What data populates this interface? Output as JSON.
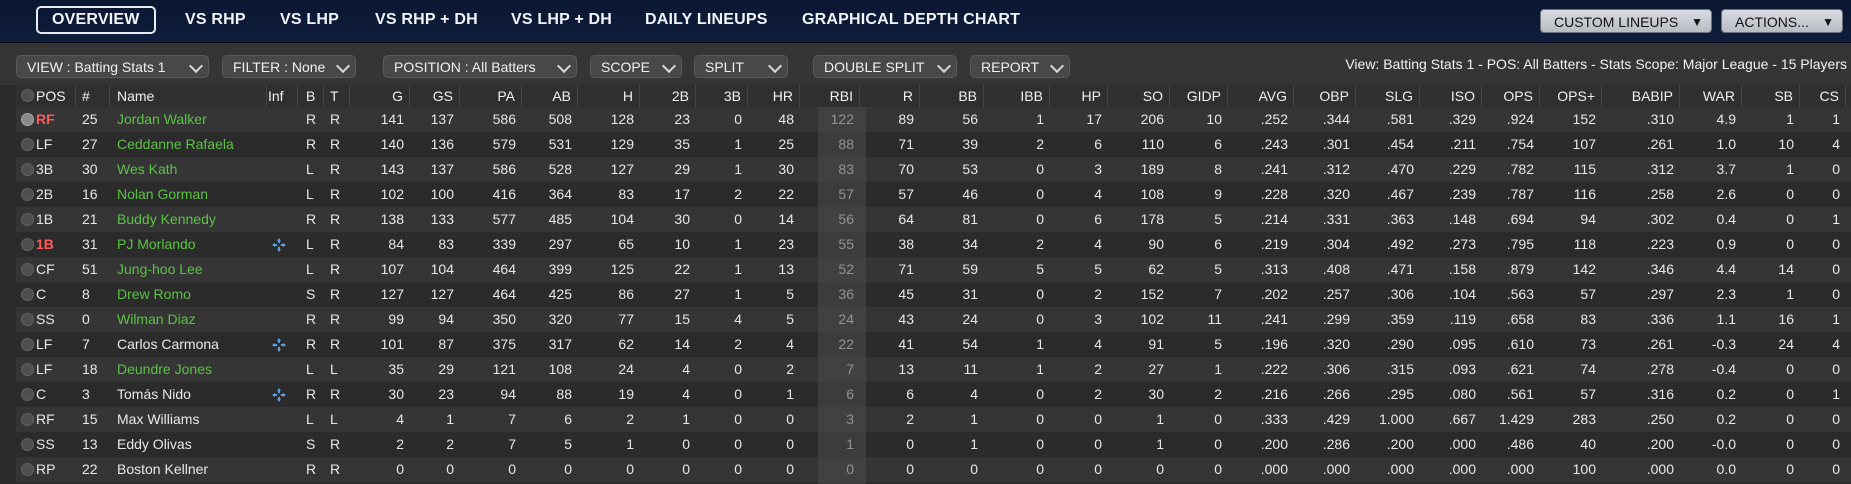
{
  "nav": {
    "tabs": [
      "OVERVIEW",
      "VS RHP",
      "VS LHP",
      "VS RHP + DH",
      "VS LHP + DH",
      "DAILY LINEUPS",
      "GRAPHICAL DEPTH CHART"
    ],
    "custom_lineups": "CUSTOM LINEUPS",
    "actions": "ACTIONS..."
  },
  "toolbar": {
    "view": "VIEW : Batting Stats 1",
    "filter": "FILTER : None",
    "position": "POSITION : All Batters",
    "scope": "SCOPE",
    "split": "SPLIT",
    "double_split": "DOUBLE SPLIT",
    "report": "REPORT",
    "info": "View: Batting Stats 1 - POS: All Batters - Stats Scope: Major League - 15 Players"
  },
  "columns": [
    "POS",
    "#",
    "Name",
    "Inf",
    "B",
    "T",
    "G",
    "GS",
    "PA",
    "AB",
    "H",
    "2B",
    "3B",
    "HR",
    "RBI",
    "R",
    "BB",
    "IBB",
    "HP",
    "SO",
    "GIDP",
    "AVG",
    "OBP",
    "SLG",
    "ISO",
    "OPS",
    "OPS+",
    "BABIP",
    "WAR",
    "SB",
    "CS"
  ],
  "colors": {
    "green": "#5cc245",
    "red": "#ff5a5a",
    "injury": "#5aa0e0"
  },
  "players": [
    {
      "pos": "RF",
      "num": "25",
      "name": "Jordan Walker",
      "inf": "",
      "b": "R",
      "t": "R",
      "stats": [
        "141",
        "137",
        "586",
        "508",
        "128",
        "23",
        "0",
        "48",
        "122",
        "89",
        "56",
        "1",
        "17",
        "206",
        "10",
        ".252",
        ".344",
        ".581",
        ".329",
        ".924",
        "152",
        ".310",
        "4.9",
        "1",
        "1"
      ],
      "name_color": "green",
      "pos_red": true,
      "selected": true
    },
    {
      "pos": "LF",
      "num": "27",
      "name": "Ceddanne Rafaela",
      "inf": "",
      "b": "R",
      "t": "R",
      "stats": [
        "140",
        "136",
        "579",
        "531",
        "129",
        "35",
        "1",
        "25",
        "88",
        "71",
        "39",
        "2",
        "6",
        "110",
        "6",
        ".243",
        ".301",
        ".454",
        ".211",
        ".754",
        "107",
        ".261",
        "1.0",
        "10",
        "4"
      ],
      "name_color": "green",
      "pos_red": false,
      "selected": false
    },
    {
      "pos": "3B",
      "num": "30",
      "name": "Wes Kath",
      "inf": "",
      "b": "L",
      "t": "R",
      "stats": [
        "143",
        "137",
        "586",
        "528",
        "127",
        "29",
        "1",
        "30",
        "83",
        "70",
        "53",
        "0",
        "3",
        "189",
        "8",
        ".241",
        ".312",
        ".470",
        ".229",
        ".782",
        "115",
        ".312",
        "3.7",
        "1",
        "0"
      ],
      "name_color": "green",
      "pos_red": false,
      "selected": false
    },
    {
      "pos": "2B",
      "num": "16",
      "name": "Nolan Gorman",
      "inf": "",
      "b": "L",
      "t": "R",
      "stats": [
        "102",
        "100",
        "416",
        "364",
        "83",
        "17",
        "2",
        "22",
        "57",
        "57",
        "46",
        "0",
        "4",
        "108",
        "9",
        ".228",
        ".320",
        ".467",
        ".239",
        ".787",
        "116",
        ".258",
        "2.6",
        "0",
        "0"
      ],
      "name_color": "green",
      "pos_red": false,
      "selected": false
    },
    {
      "pos": "1B",
      "num": "21",
      "name": "Buddy Kennedy",
      "inf": "",
      "b": "R",
      "t": "R",
      "stats": [
        "138",
        "133",
        "577",
        "485",
        "104",
        "30",
        "0",
        "14",
        "56",
        "64",
        "81",
        "0",
        "6",
        "178",
        "5",
        ".214",
        ".331",
        ".363",
        ".148",
        ".694",
        "94",
        ".302",
        "0.4",
        "0",
        "1"
      ],
      "name_color": "green",
      "pos_red": false,
      "selected": false
    },
    {
      "pos": "1B",
      "num": "31",
      "name": "PJ Morlando",
      "inf": "injury-icon",
      "b": "L",
      "t": "R",
      "stats": [
        "84",
        "83",
        "339",
        "297",
        "65",
        "10",
        "1",
        "23",
        "55",
        "38",
        "34",
        "2",
        "4",
        "90",
        "6",
        ".219",
        ".304",
        ".492",
        ".273",
        ".795",
        "118",
        ".223",
        "0.9",
        "0",
        "0"
      ],
      "name_color": "green",
      "pos_red": true,
      "selected": false
    },
    {
      "pos": "CF",
      "num": "51",
      "name": "Jung-hoo Lee",
      "inf": "",
      "b": "L",
      "t": "R",
      "stats": [
        "107",
        "104",
        "464",
        "399",
        "125",
        "22",
        "1",
        "13",
        "52",
        "71",
        "59",
        "5",
        "5",
        "62",
        "5",
        ".313",
        ".408",
        ".471",
        ".158",
        ".879",
        "142",
        ".346",
        "4.4",
        "14",
        "0"
      ],
      "name_color": "green",
      "pos_red": false,
      "selected": false
    },
    {
      "pos": "C",
      "num": "8",
      "name": "Drew Romo",
      "inf": "",
      "b": "S",
      "t": "R",
      "stats": [
        "127",
        "127",
        "464",
        "425",
        "86",
        "27",
        "1",
        "5",
        "36",
        "45",
        "31",
        "0",
        "2",
        "152",
        "7",
        ".202",
        ".257",
        ".306",
        ".104",
        ".563",
        "57",
        ".297",
        "2.3",
        "1",
        "0"
      ],
      "name_color": "green",
      "pos_red": false,
      "selected": false
    },
    {
      "pos": "SS",
      "num": "0",
      "name": "Wilman Diaz",
      "inf": "",
      "b": "R",
      "t": "R",
      "stats": [
        "99",
        "94",
        "350",
        "320",
        "77",
        "15",
        "4",
        "5",
        "24",
        "43",
        "24",
        "0",
        "3",
        "102",
        "11",
        ".241",
        ".299",
        ".359",
        ".119",
        ".658",
        "83",
        ".336",
        "1.1",
        "16",
        "1"
      ],
      "name_color": "green",
      "pos_red": false,
      "selected": false
    },
    {
      "pos": "LF",
      "num": "7",
      "name": "Carlos Carmona",
      "inf": "injury-icon",
      "b": "R",
      "t": "R",
      "stats": [
        "101",
        "87",
        "375",
        "317",
        "62",
        "14",
        "2",
        "4",
        "22",
        "41",
        "54",
        "1",
        "4",
        "91",
        "5",
        ".196",
        ".320",
        ".290",
        ".095",
        ".610",
        "73",
        ".261",
        "-0.3",
        "24",
        "4"
      ],
      "name_color": "white",
      "pos_red": false,
      "selected": false
    },
    {
      "pos": "LF",
      "num": "18",
      "name": "Deundre Jones",
      "inf": "",
      "b": "L",
      "t": "L",
      "stats": [
        "35",
        "29",
        "121",
        "108",
        "24",
        "4",
        "0",
        "2",
        "7",
        "13",
        "11",
        "1",
        "2",
        "27",
        "1",
        ".222",
        ".306",
        ".315",
        ".093",
        ".621",
        "74",
        ".278",
        "-0.4",
        "0",
        "0"
      ],
      "name_color": "green",
      "pos_red": false,
      "selected": false
    },
    {
      "pos": "C",
      "num": "3",
      "name": "Tomás Nido",
      "inf": "injury-icon",
      "b": "R",
      "t": "R",
      "stats": [
        "30",
        "23",
        "94",
        "88",
        "19",
        "4",
        "0",
        "1",
        "6",
        "6",
        "4",
        "0",
        "2",
        "30",
        "2",
        ".216",
        ".266",
        ".295",
        ".080",
        ".561",
        "57",
        ".316",
        "0.2",
        "0",
        "1"
      ],
      "name_color": "white",
      "pos_red": false,
      "selected": false
    },
    {
      "pos": "RF",
      "num": "15",
      "name": "Max Williams",
      "inf": "",
      "b": "L",
      "t": "L",
      "stats": [
        "4",
        "1",
        "7",
        "6",
        "2",
        "1",
        "0",
        "0",
        "3",
        "2",
        "1",
        "0",
        "0",
        "1",
        "0",
        ".333",
        ".429",
        "1.000",
        ".667",
        "1.429",
        "283",
        ".250",
        "0.2",
        "0",
        "0"
      ],
      "name_color": "white",
      "pos_red": false,
      "selected": false
    },
    {
      "pos": "SS",
      "num": "13",
      "name": "Eddy Olivas",
      "inf": "",
      "b": "S",
      "t": "R",
      "stats": [
        "2",
        "2",
        "7",
        "5",
        "1",
        "0",
        "0",
        "0",
        "1",
        "0",
        "1",
        "0",
        "0",
        "1",
        "0",
        ".200",
        ".286",
        ".200",
        ".000",
        ".486",
        "40",
        ".200",
        "-0.0",
        "0",
        "0"
      ],
      "name_color": "white",
      "pos_red": false,
      "selected": false
    },
    {
      "pos": "RP",
      "num": "22",
      "name": "Boston Kellner",
      "inf": "",
      "b": "R",
      "t": "R",
      "stats": [
        "0",
        "0",
        "0",
        "0",
        "0",
        "0",
        "0",
        "0",
        "0",
        "0",
        "0",
        "0",
        "0",
        "0",
        "0",
        ".000",
        ".000",
        ".000",
        ".000",
        ".000",
        "100",
        ".000",
        "0.0",
        "0",
        "0"
      ],
      "name_color": "white",
      "pos_red": false,
      "selected": false
    }
  ]
}
